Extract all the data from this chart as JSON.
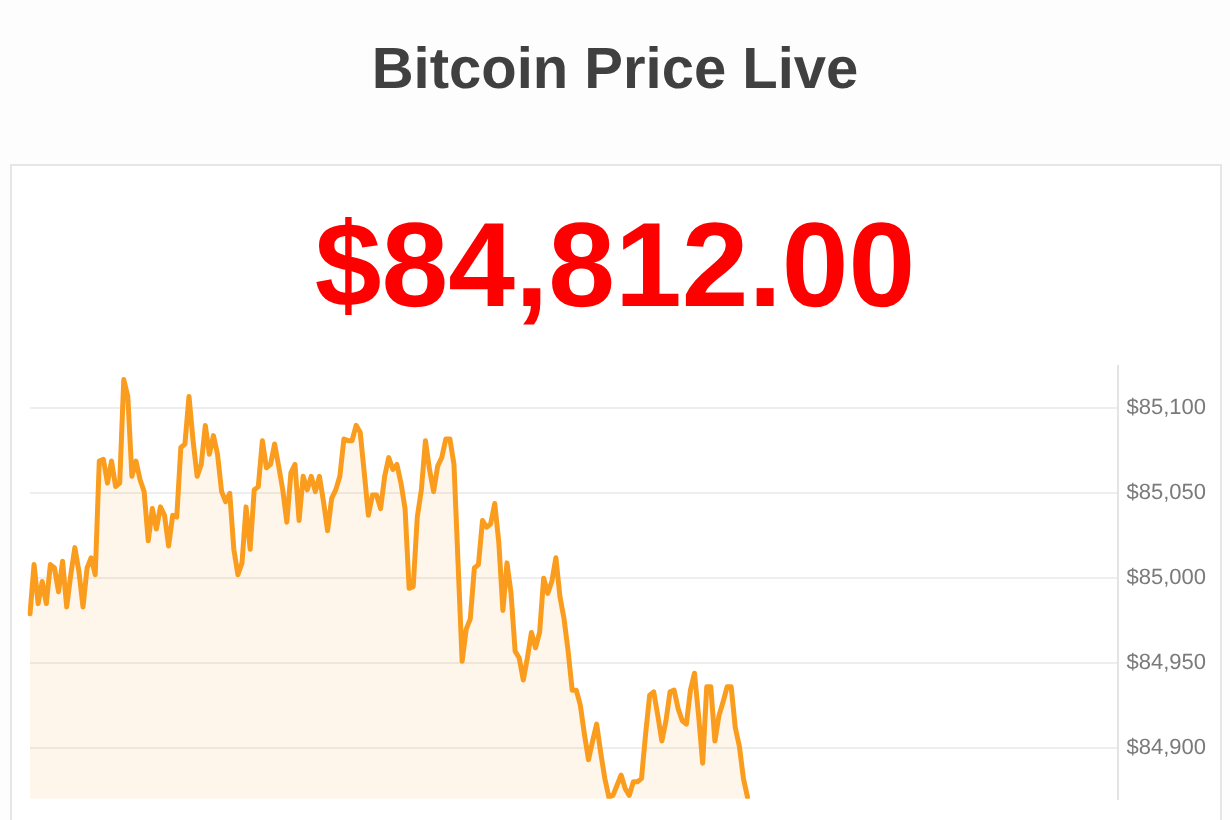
{
  "chart_data": {
    "type": "area",
    "title": "Bitcoin Price Live",
    "subtitle": "$84,812.00",
    "categories": [
      null,
      null,
      null,
      null,
      null,
      null,
      null,
      null,
      null,
      null,
      null,
      null,
      null,
      null,
      null,
      null,
      null,
      null,
      null,
      null,
      null,
      null,
      null,
      null,
      null,
      null,
      null,
      null,
      null,
      null,
      null,
      null,
      null,
      null,
      null,
      null,
      null,
      null,
      null,
      null,
      null,
      null,
      null,
      null,
      null,
      null,
      null,
      null,
      null,
      null,
      null,
      null,
      null,
      null,
      null,
      null,
      null,
      null,
      null,
      null,
      null,
      null,
      null,
      null,
      null,
      null,
      null,
      null,
      null,
      null,
      null,
      null,
      null,
      null,
      null,
      null,
      null,
      null,
      null,
      null,
      null,
      null,
      null,
      null,
      null,
      null,
      null,
      null,
      null,
      null,
      null,
      null,
      null,
      null,
      null,
      null,
      null,
      null,
      null,
      null,
      null,
      null,
      null,
      null,
      null,
      null,
      null,
      null,
      null,
      null,
      null,
      null,
      null,
      null,
      null,
      null,
      null,
      null,
      null,
      null,
      null,
      null,
      null,
      null,
      null,
      null,
      null,
      null,
      null,
      null,
      null,
      null,
      null,
      null,
      null,
      null,
      null,
      null,
      null,
      null,
      null,
      null,
      null,
      null,
      null,
      null,
      null,
      null,
      null,
      null,
      null,
      null,
      null,
      null,
      null,
      null,
      null,
      null,
      null,
      null,
      null,
      null,
      null,
      null,
      null,
      null,
      null,
      null,
      null,
      null,
      null,
      null,
      null,
      null,
      null,
      null,
      null,
      null,
      null,
      null,
      null,
      null,
      null,
      null,
      null,
      null,
      null,
      null,
      null,
      null,
      null,
      null,
      null,
      null,
      null,
      null,
      null,
      null,
      null,
      null,
      null,
      null,
      null,
      null,
      null,
      null,
      null,
      null,
      null,
      null,
      null,
      null,
      null,
      null,
      null,
      null,
      null,
      null,
      null,
      null,
      null,
      null,
      null,
      null,
      null,
      null,
      null,
      null,
      null,
      null,
      null,
      null,
      null,
      null,
      null,
      null,
      null,
      null,
      null,
      null,
      null,
      null,
      null,
      null,
      null,
      null,
      null,
      null,
      null,
      null,
      null,
      null,
      null,
      null,
      null,
      null,
      null,
      null,
      null,
      null,
      null,
      null,
      null,
      null,
      null,
      null,
      null,
      null
    ],
    "series": [
      {
        "color": "#fa9d1e",
        "values": [
          84979,
          85008,
          84985,
          84998,
          84985,
          85008,
          85006,
          84992,
          85010,
          84983,
          85002,
          85018,
          85004,
          84983,
          85006,
          85012,
          85002,
          85069,
          85070,
          85056,
          85069,
          85054,
          85056,
          85117,
          85107,
          85060,
          85069,
          85058,
          85051,
          85022,
          85041,
          85029,
          85042,
          85037,
          85019,
          85037,
          85036,
          85077,
          85079,
          85107,
          85081,
          85060,
          85067,
          85090,
          85073,
          85084,
          85073,
          85051,
          85045,
          85050,
          85017,
          85002,
          85009,
          85042,
          85017,
          85052,
          85054,
          85081,
          85065,
          85067,
          85079,
          85066,
          85052,
          85033,
          85062,
          85067,
          85034,
          85060,
          85052,
          85060,
          85051,
          85060,
          85045,
          85028,
          85047,
          85052,
          85060,
          85082,
          85081,
          85081,
          85090,
          85086,
          85062,
          85037,
          85049,
          85049,
          85041,
          85060,
          85071,
          85064,
          85067,
          85056,
          85041,
          84994,
          84995,
          85036,
          85052,
          85081,
          85064,
          85051,
          85066,
          85071,
          85082,
          85082,
          85067,
          85009,
          84951,
          84970,
          84976,
          85006,
          85008,
          85034,
          85030,
          85032,
          85044,
          85021,
          84981,
          85009,
          84991,
          84957,
          84953,
          84940,
          84953,
          84968,
          84959,
          84968,
          85000,
          84991,
          84998,
          85012,
          84989,
          84976,
          84957,
          84934,
          84934,
          84925,
          84908,
          84893,
          84904,
          84914,
          84897,
          84882,
          84871,
          84872,
          84878,
          84884,
          84876,
          84872,
          84880,
          84880,
          84882,
          84908,
          84931,
          84933,
          84919,
          84904,
          84916,
          84933,
          84934,
          84923,
          84916,
          84914,
          84934,
          84944,
          84919,
          84891,
          84936,
          84936,
          84904,
          84919,
          84927,
          84936,
          84936,
          84912,
          84901,
          84882,
          84871,
          null,
          null,
          null,
          null,
          null,
          null,
          null,
          null,
          null,
          null,
          null,
          null,
          null,
          null,
          null,
          null,
          null,
          null,
          null,
          null,
          null,
          null,
          null,
          null,
          null,
          null,
          null,
          null,
          null,
          null,
          null,
          null,
          null,
          null,
          null,
          null,
          null,
          null,
          null,
          null,
          null,
          null,
          null,
          null,
          null,
          null,
          null,
          null,
          null,
          null,
          null,
          null,
          null,
          null,
          null,
          null,
          null,
          null,
          null,
          null,
          null,
          null,
          null,
          null,
          null,
          null,
          null,
          null,
          null,
          null,
          null,
          null,
          null,
          null,
          null,
          null,
          null,
          null,
          null,
          null,
          null,
          null,
          null,
          null,
          null,
          null,
          null,
          null,
          null,
          null,
          null
        ]
      }
    ],
    "ylim": [
      84870,
      85125
    ],
    "yticks": [
      {
        "value": 84900,
        "label": "$84,900"
      },
      {
        "value": 84950,
        "label": "$84,950"
      },
      {
        "value": 85000,
        "label": "$85,000"
      },
      {
        "value": 85050,
        "label": "$85,050"
      },
      {
        "value": 85100,
        "label": "$85,100"
      }
    ],
    "grid": "y",
    "legend": false,
    "marker": "none",
    "tick_labels": "y"
  }
}
